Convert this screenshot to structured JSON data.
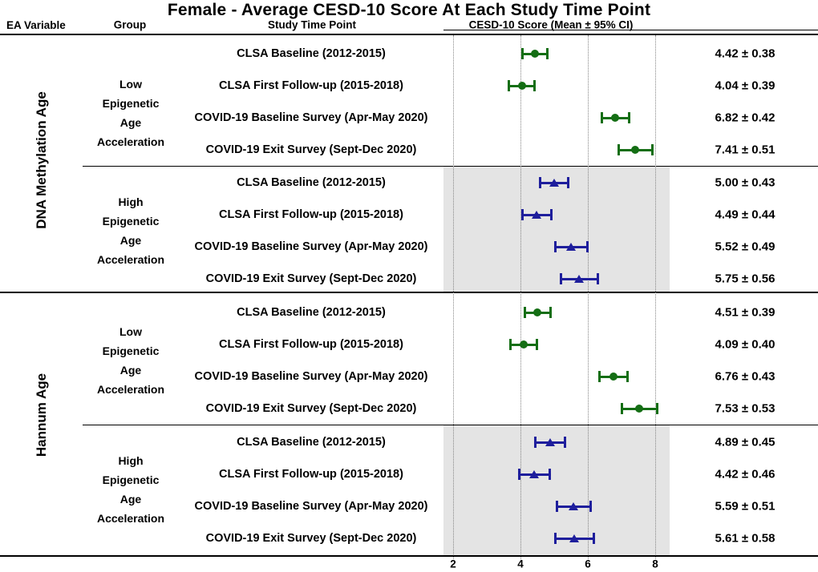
{
  "title": "Female - Average CESD-10 Score At Each Study Time Point",
  "headers": {
    "ea_variable": "EA Variable",
    "group": "Group",
    "time_point": "Study Time Point",
    "score": "CESD-10 Score (Mean ± 95% CI)"
  },
  "colors": {
    "low": "#146e14",
    "high": "#1e1e9c",
    "shaded_band": "#e4e4e4",
    "gridline": "#858585",
    "text": "#000000"
  },
  "chart_data": {
    "type": "scatter",
    "subtype": "forest-plot-mean-ci",
    "title": "Female - Average CESD-10 Score At Each Study Time Point",
    "xlabel": "CESD-10 Score (Mean ± 95% CI)",
    "x_ticks": [
      2,
      4,
      6,
      8
    ],
    "x_axis_range": [
      1.71,
      10.0
    ],
    "shaded_band_x_range": [
      1.71,
      8.43
    ],
    "grid": "vertical-dotted",
    "legend_position": "none",
    "sections": [
      {
        "ea_variable": "DNA Methylation Age",
        "groups": [
          {
            "name": "Low Epigenetic Age Acceleration",
            "label_lines": [
              "Low",
              "Epigenetic",
              "Age",
              "Acceleration"
            ],
            "marker": "circle",
            "color_key": "low",
            "shaded": false,
            "rows": [
              {
                "time_point": "CLSA Baseline (2012-2015)",
                "mean": 4.42,
                "ci": 0.38,
                "display": "4.42 ± 0.38"
              },
              {
                "time_point": "CLSA First Follow-up (2015-2018)",
                "mean": 4.04,
                "ci": 0.39,
                "display": "4.04 ± 0.39"
              },
              {
                "time_point": "COVID-19 Baseline Survey (Apr-May 2020)",
                "mean": 6.82,
                "ci": 0.42,
                "display": "6.82 ± 0.42"
              },
              {
                "time_point": "COVID-19 Exit Survey (Sept-Dec 2020)",
                "mean": 7.41,
                "ci": 0.51,
                "display": "7.41 ± 0.51"
              }
            ]
          },
          {
            "name": "High Epigenetic Age Acceleration",
            "label_lines": [
              "High",
              "Epigenetic",
              "Age",
              "Acceleration"
            ],
            "marker": "triangle",
            "color_key": "high",
            "shaded": true,
            "rows": [
              {
                "time_point": "CLSA Baseline (2012-2015)",
                "mean": 5.0,
                "ci": 0.43,
                "display": "5.00 ± 0.43"
              },
              {
                "time_point": "CLSA First Follow-up (2015-2018)",
                "mean": 4.49,
                "ci": 0.44,
                "display": "4.49 ± 0.44"
              },
              {
                "time_point": "COVID-19 Baseline Survey (Apr-May 2020)",
                "mean": 5.52,
                "ci": 0.49,
                "display": "5.52 ± 0.49"
              },
              {
                "time_point": "COVID-19 Exit Survey (Sept-Dec 2020)",
                "mean": 5.75,
                "ci": 0.56,
                "display": "5.75 ± 0.56"
              }
            ]
          }
        ]
      },
      {
        "ea_variable": "Hannum Age",
        "groups": [
          {
            "name": "Low Epigenetic Age Acceleration",
            "label_lines": [
              "Low",
              "Epigenetic",
              "Age",
              "Acceleration"
            ],
            "marker": "circle",
            "color_key": "low",
            "shaded": false,
            "rows": [
              {
                "time_point": "CLSA Baseline (2012-2015)",
                "mean": 4.51,
                "ci": 0.39,
                "display": "4.51 ± 0.39"
              },
              {
                "time_point": "CLSA First Follow-up (2015-2018)",
                "mean": 4.09,
                "ci": 0.4,
                "display": "4.09 ± 0.40"
              },
              {
                "time_point": "COVID-19 Baseline Survey (Apr-May 2020)",
                "mean": 6.76,
                "ci": 0.43,
                "display": "6.76 ± 0.43"
              },
              {
                "time_point": "COVID-19 Exit Survey (Sept-Dec 2020)",
                "mean": 7.53,
                "ci": 0.53,
                "display": "7.53 ± 0.53"
              }
            ]
          },
          {
            "name": "High Epigenetic Age Acceleration",
            "label_lines": [
              "High",
              "Epigenetic",
              "Age",
              "Acceleration"
            ],
            "marker": "triangle",
            "color_key": "high",
            "shaded": true,
            "rows": [
              {
                "time_point": "CLSA Baseline (2012-2015)",
                "mean": 4.89,
                "ci": 0.45,
                "display": "4.89 ± 0.45"
              },
              {
                "time_point": "CLSA First Follow-up (2015-2018)",
                "mean": 4.42,
                "ci": 0.46,
                "display": "4.42 ± 0.46"
              },
              {
                "time_point": "COVID-19 Baseline Survey (Apr-May 2020)",
                "mean": 5.59,
                "ci": 0.51,
                "display": "5.59 ± 0.51"
              },
              {
                "time_point": "COVID-19 Exit Survey (Sept-Dec 2020)",
                "mean": 5.61,
                "ci": 0.58,
                "display": "5.61 ± 0.58"
              }
            ]
          }
        ]
      }
    ]
  }
}
